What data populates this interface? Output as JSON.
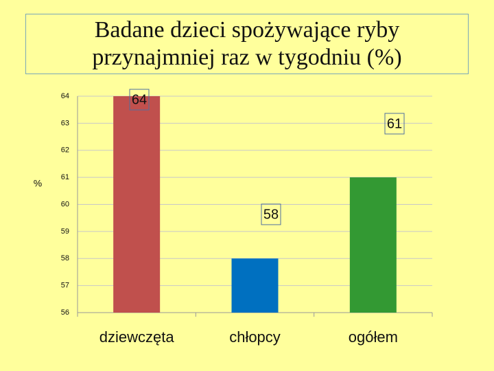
{
  "chart_data": {
    "type": "bar",
    "title": "Badane dzieci spożywające ryby przynajmniej raz w tygodniu (%)",
    "y_label": "%",
    "categories": [
      "dziewczęta",
      "chłopcy",
      "ogółem"
    ],
    "values": [
      64,
      58,
      61
    ],
    "colors": [
      "#c0504d",
      "#0070c0",
      "#339933"
    ],
    "ylim": [
      56,
      64
    ],
    "yticks": [
      56,
      57,
      58,
      59,
      60,
      61,
      62,
      63,
      64
    ],
    "grid": true
  }
}
